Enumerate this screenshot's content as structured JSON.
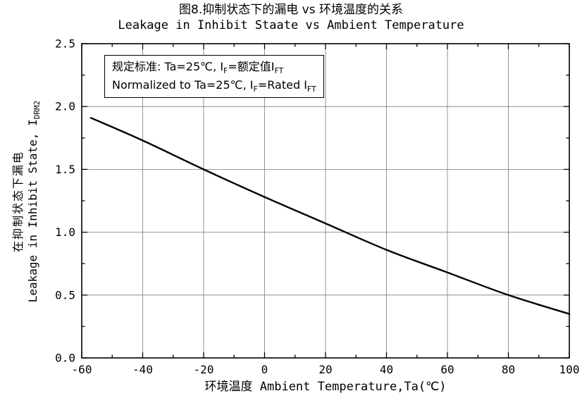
{
  "title": {
    "zh": "图8.抑制状态下的漏电 vs 环境温度的关系",
    "en": "Leakage in Inhibit Staate vs Ambient Temperature"
  },
  "annotation": {
    "line1": {
      "pre": "规定标准: Ta=25℃, I",
      "sub1": "F",
      "mid": "=额定值I",
      "sub2": "FT"
    },
    "line2": {
      "pre": "Normalized to Ta=25℃, I",
      "sub1": "F",
      "mid": "=Rated I",
      "sub2": "FT"
    }
  },
  "y_axis": {
    "zh": "在抑制状态下漏电",
    "en_pre": "Leakage in Inhibit State, I",
    "en_sub": "DRM2"
  },
  "x_axis": {
    "label": "环境温度 Ambient Temperature,Ta(℃)"
  },
  "chart_data": {
    "type": "line",
    "title_zh": "图8.抑制状态下的漏电 vs 环境温度的关系",
    "title_en": "Leakage in Inhibit Staate vs Ambient Temperature",
    "xlabel": "环境温度 Ambient Temperature,Ta(℃)",
    "ylabel": "在抑制状态下漏电 Leakage in Inhibit State, I_DRM2",
    "xlim": [
      -60,
      100
    ],
    "ylim": [
      0,
      2.5
    ],
    "xticks": [
      -60,
      -40,
      -20,
      0,
      20,
      40,
      60,
      80,
      100
    ],
    "yticks": [
      0.0,
      0.5,
      1.0,
      1.5,
      2.0,
      2.5
    ],
    "xminor": 10,
    "yminor": 0.25,
    "grid": true,
    "legend": "none",
    "line_color": "#000000",
    "grid_color": "#7a7a7a",
    "series": [
      {
        "name": "leakage-vs-temperature",
        "x": [
          -57,
          -40,
          -20,
          0,
          20,
          40,
          60,
          80,
          100
        ],
        "y": [
          1.91,
          1.73,
          1.5,
          1.28,
          1.07,
          0.86,
          0.68,
          0.5,
          0.35
        ]
      }
    ]
  }
}
